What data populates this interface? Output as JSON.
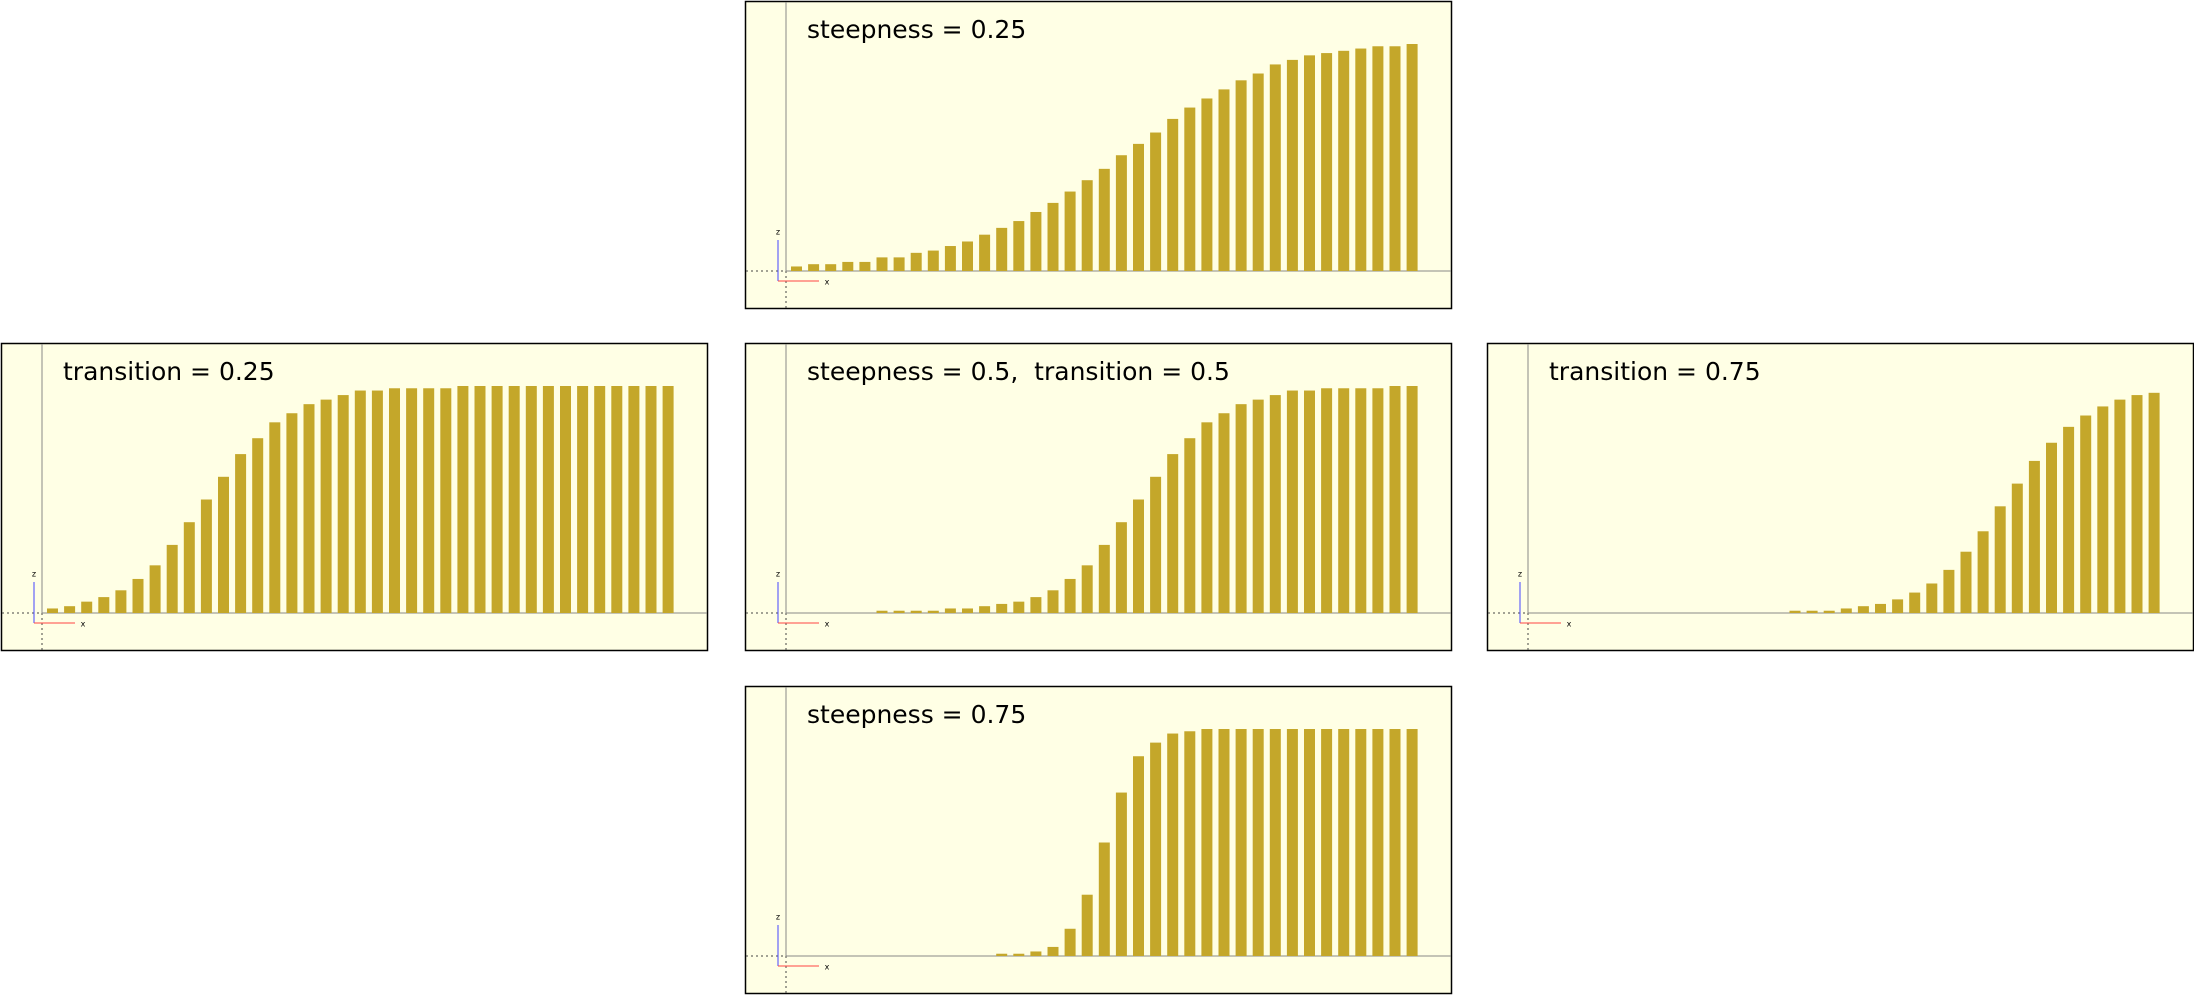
{
  "chart_data": [
    {
      "type": "bar",
      "title": "steepness = 0.25",
      "color": "#c4a72a",
      "background": "#ffffe5",
      "ylim": [
        0,
        1
      ],
      "x_axis_label": "x",
      "z_axis_label": "z",
      "values": [
        0.02,
        0.03,
        0.03,
        0.04,
        0.04,
        0.06,
        0.06,
        0.08,
        0.09,
        0.11,
        0.13,
        0.16,
        0.19,
        0.22,
        0.26,
        0.3,
        0.35,
        0.4,
        0.45,
        0.51,
        0.56,
        0.61,
        0.67,
        0.72,
        0.76,
        0.8,
        0.84,
        0.87,
        0.91,
        0.93,
        0.95,
        0.96,
        0.97,
        0.98,
        0.99,
        0.99,
        1
      ]
    },
    {
      "type": "bar",
      "title": "transition = 0.25",
      "color": "#c4a72a",
      "background": "#ffffe5",
      "ylim": [
        0,
        1
      ],
      "x_axis_label": "x",
      "z_axis_label": "z",
      "values": [
        0.02,
        0.03,
        0.05,
        0.07,
        0.1,
        0.15,
        0.21,
        0.3,
        0.4,
        0.5,
        0.6,
        0.7,
        0.77,
        0.84,
        0.88,
        0.92,
        0.94,
        0.96,
        0.98,
        0.98,
        0.99,
        0.99,
        0.99,
        0.99,
        1,
        1,
        1,
        1,
        1,
        1,
        1,
        1,
        1,
        1,
        1,
        1,
        1
      ]
    },
    {
      "type": "bar",
      "title": "steepness = 0.5,  transition = 0.5",
      "color": "#c4a72a",
      "background": "#ffffe5",
      "ylim": [
        0,
        1
      ],
      "x_axis_label": "x",
      "z_axis_label": "z",
      "values": [
        0,
        0,
        0,
        0,
        0,
        0.01,
        0.01,
        0.01,
        0.01,
        0.02,
        0.02,
        0.03,
        0.04,
        0.05,
        0.07,
        0.1,
        0.15,
        0.21,
        0.3,
        0.4,
        0.5,
        0.6,
        0.7,
        0.77,
        0.84,
        0.88,
        0.92,
        0.94,
        0.96,
        0.98,
        0.98,
        0.99,
        0.99,
        0.99,
        0.99,
        1,
        1
      ]
    },
    {
      "type": "bar",
      "title": "transition = 0.75",
      "color": "#c4a72a",
      "background": "#ffffe5",
      "ylim": [
        0,
        1
      ],
      "x_axis_label": "x",
      "z_axis_label": "z",
      "values": [
        0,
        0,
        0,
        0,
        0,
        0,
        0,
        0,
        0,
        0,
        0,
        0,
        0,
        0,
        0,
        0.01,
        0.01,
        0.01,
        0.02,
        0.03,
        0.04,
        0.06,
        0.09,
        0.13,
        0.19,
        0.27,
        0.36,
        0.47,
        0.57,
        0.67,
        0.75,
        0.82,
        0.87,
        0.91,
        0.94,
        0.96,
        0.97
      ]
    },
    {
      "type": "bar",
      "title": "steepness = 0.75",
      "color": "#c4a72a",
      "background": "#ffffe5",
      "ylim": [
        0,
        1
      ],
      "x_axis_label": "x",
      "z_axis_label": "z",
      "values": [
        0,
        0,
        0,
        0,
        0,
        0,
        0,
        0,
        0,
        0,
        0,
        0,
        0.01,
        0.01,
        0.02,
        0.04,
        0.12,
        0.27,
        0.5,
        0.72,
        0.88,
        0.94,
        0.98,
        0.99,
        1,
        1,
        1,
        1,
        1,
        1,
        1,
        1,
        1,
        1,
        1,
        1,
        1
      ]
    }
  ]
}
